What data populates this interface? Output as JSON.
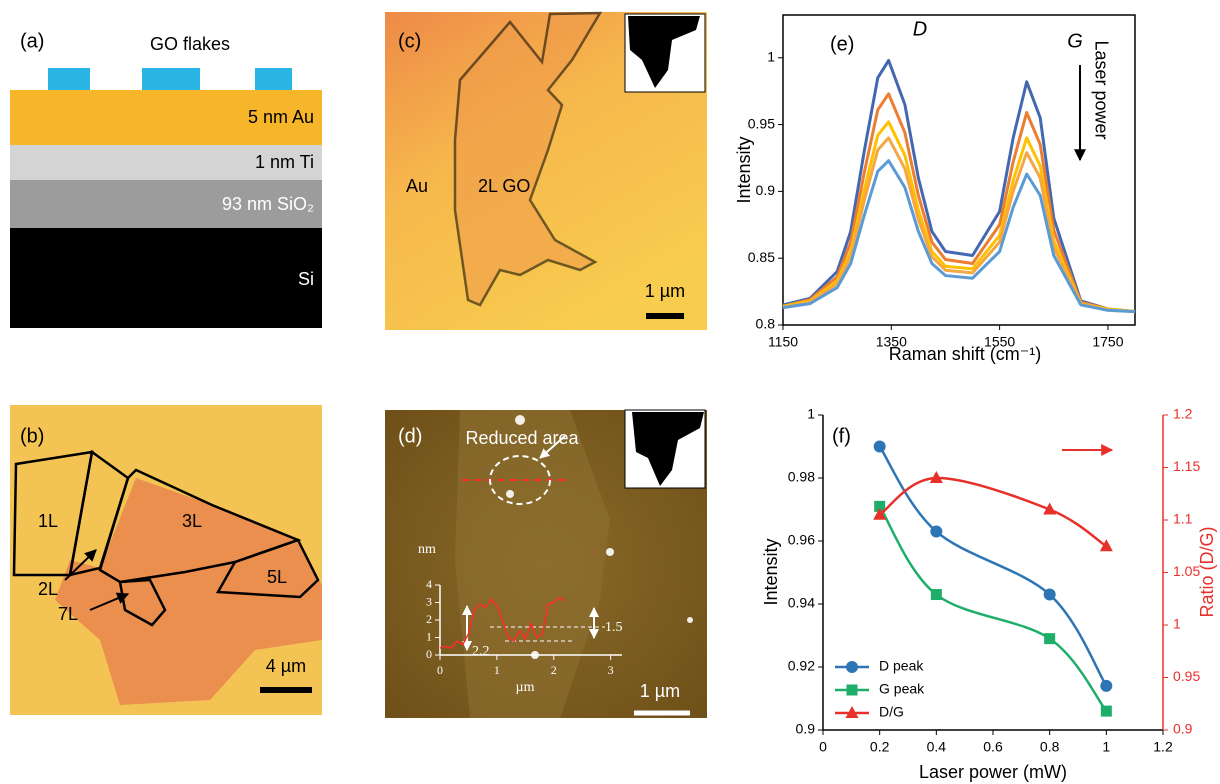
{
  "panel_a": {
    "label": "(a)",
    "title": "GO flakes",
    "layers": [
      "5 nm Au",
      "1 nm Ti",
      "93 nm SiO₂",
      "Si"
    ]
  },
  "panel_b": {
    "label": "(b)",
    "regions": [
      "1L",
      "2L",
      "3L",
      "5L",
      "7L"
    ],
    "scale_bar": "4 µm"
  },
  "panel_c": {
    "label": "(c)",
    "regions": [
      "Au",
      "2L GO"
    ],
    "scale_bar": "1 µm"
  },
  "panel_d": {
    "label": "(d)",
    "annotation": "Reduced area",
    "scale_bar": "1 µm"
  },
  "chart_data": [
    {
      "type": "line",
      "label": "(e)",
      "xlabel": "Raman shift (cm⁻¹)",
      "ylabel": "Intensity",
      "annotations": [
        "D",
        "G",
        "Laser power"
      ],
      "frame": "box",
      "xlim": [
        1150,
        1800
      ],
      "xticks": [
        1150,
        1350,
        1550,
        1750
      ],
      "ylim": [
        0.8,
        1.032
      ],
      "yticks": [
        0.8,
        0.85,
        0.9,
        0.95,
        1
      ],
      "x": [
        1150,
        1200,
        1250,
        1275,
        1300,
        1325,
        1345,
        1375,
        1400,
        1425,
        1450,
        1500,
        1550,
        1575,
        1600,
        1625,
        1650,
        1700,
        1750,
        1800
      ],
      "series": [
        {
          "color": "#4468b0",
          "values": [
            0.815,
            0.82,
            0.84,
            0.87,
            0.93,
            0.985,
            0.998,
            0.965,
            0.91,
            0.87,
            0.855,
            0.852,
            0.885,
            0.94,
            0.982,
            0.955,
            0.88,
            0.818,
            0.812,
            0.81
          ]
        },
        {
          "color": "#ed7d31",
          "values": [
            0.814,
            0.819,
            0.836,
            0.862,
            0.914,
            0.961,
            0.973,
            0.944,
            0.897,
            0.862,
            0.849,
            0.846,
            0.875,
            0.922,
            0.959,
            0.935,
            0.871,
            0.817,
            0.812,
            0.81
          ]
        },
        {
          "color": "#ffc000",
          "values": [
            0.814,
            0.818,
            0.833,
            0.855,
            0.901,
            0.942,
            0.952,
            0.927,
            0.886,
            0.855,
            0.844,
            0.842,
            0.867,
            0.908,
            0.94,
            0.919,
            0.863,
            0.816,
            0.812,
            0.81
          ]
        },
        {
          "color": "#f4a742",
          "values": [
            0.813,
            0.817,
            0.831,
            0.851,
            0.893,
            0.931,
            0.94,
            0.917,
            0.879,
            0.851,
            0.841,
            0.839,
            0.862,
            0.9,
            0.929,
            0.91,
            0.858,
            0.816,
            0.811,
            0.81
          ]
        },
        {
          "color": "#5b9bd5",
          "values": [
            0.813,
            0.816,
            0.828,
            0.846,
            0.882,
            0.915,
            0.923,
            0.903,
            0.87,
            0.846,
            0.837,
            0.835,
            0.855,
            0.888,
            0.913,
            0.897,
            0.852,
            0.815,
            0.811,
            0.81
          ]
        }
      ]
    },
    {
      "type": "line",
      "label": "(f)",
      "xlabel": "Laser power (mW)",
      "ylabel": "Intensity",
      "y2label": "Ratio (D/G)",
      "frame": "axes",
      "smooth": true,
      "legend": "lower left",
      "y2color": "#e8302a",
      "xlim": [
        0,
        1.2
      ],
      "xticks": [
        0,
        0.2,
        0.4,
        0.6,
        0.8,
        1,
        1.2
      ],
      "ylim": [
        0.9,
        1
      ],
      "yticks": [
        0.9,
        0.92,
        0.94,
        0.96,
        0.98,
        1
      ],
      "y2lim": [
        0.9,
        1.2
      ],
      "y2ticks": [
        0.9,
        0.95,
        1,
        1.05,
        1.1,
        1.15,
        1.2
      ],
      "x": [
        0.2,
        0.4,
        0.8,
        1
      ],
      "series": [
        {
          "name": "D peak",
          "color": "#2e75b6",
          "marker": "circle",
          "values": [
            0.99,
            0.963,
            0.943,
            0.914
          ]
        },
        {
          "name": "G peak",
          "color": "#1fae6a",
          "marker": "square",
          "values": [
            0.971,
            0.943,
            0.929,
            0.906
          ]
        },
        {
          "name": "D/G",
          "color": "#e8302a",
          "marker": "triangle",
          "axis": "y2",
          "values": [
            1.105,
            1.14,
            1.11,
            1.075
          ]
        }
      ]
    },
    {
      "type": "line",
      "xlabel": "µm",
      "ylabel": "nm",
      "frame": "axes",
      "axis_color": "#ffffff",
      "annotations": [
        "2.2",
        "1.5"
      ],
      "xlim": [
        0,
        3.2
      ],
      "xticks": [
        0,
        1,
        2,
        3
      ],
      "ylim": [
        0,
        4
      ],
      "yticks": [
        0,
        1,
        2,
        3,
        4
      ],
      "x": [
        0,
        0.1,
        0.2,
        0.3,
        0.4,
        0.5,
        0.6,
        0.7,
        0.8,
        0.9,
        1,
        1.1,
        1.2,
        1.3,
        1.4,
        1.5,
        1.6,
        1.7,
        1.8,
        1.9,
        2,
        2.1,
        2.2
      ],
      "series": [
        {
          "color": "#ff2a2a",
          "values": [
            0.4,
            0.5,
            0.4,
            0.8,
            0.6,
            1.2,
            2.6,
            2.9,
            2.7,
            3.2,
            2.8,
            2,
            1,
            0.8,
            1.4,
            0.9,
            1.8,
            1,
            1.2,
            2.9,
            3,
            3.3,
            3.1
          ]
        }
      ]
    }
  ]
}
